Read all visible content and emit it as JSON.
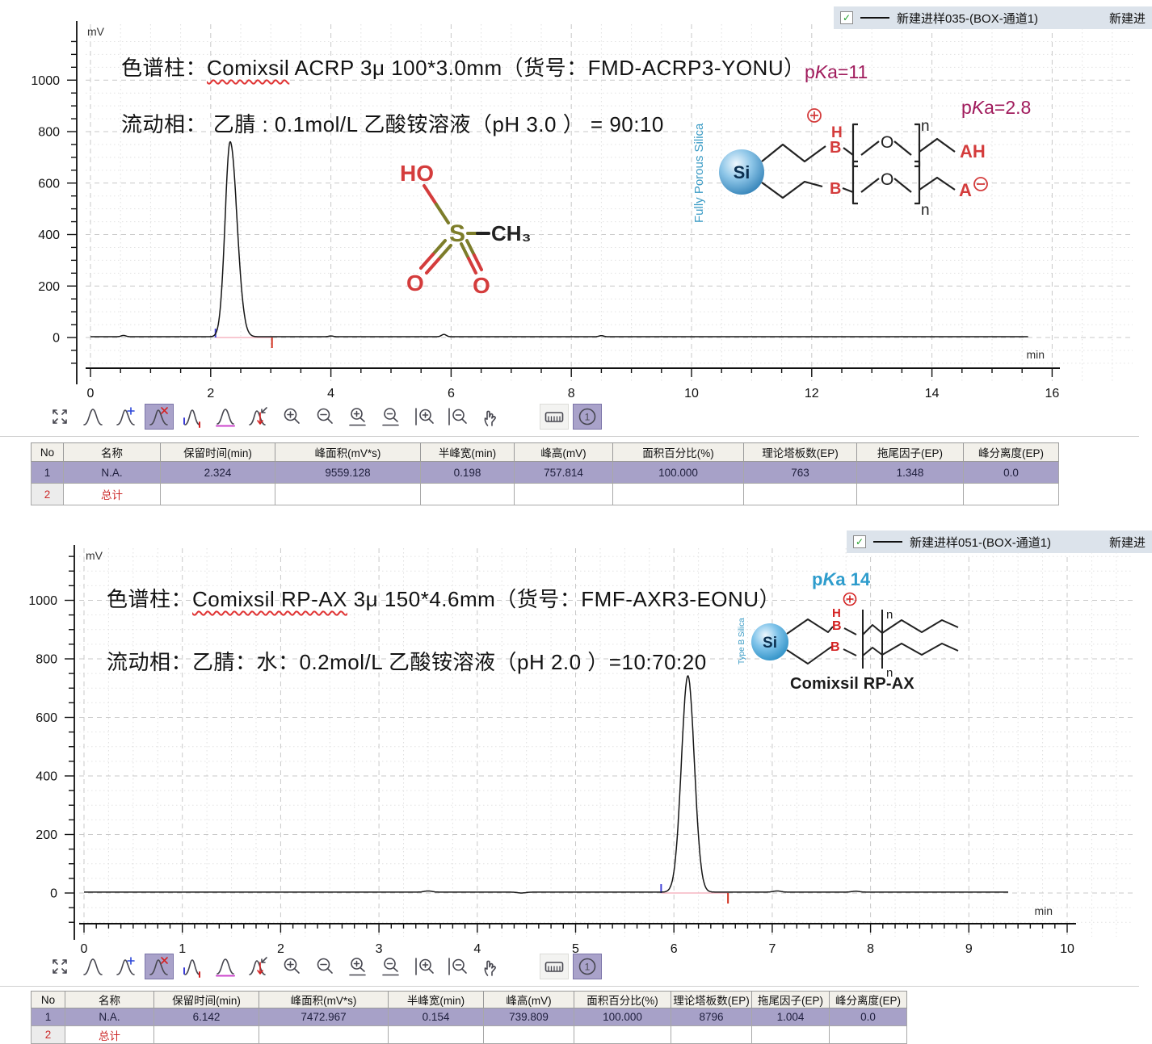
{
  "chart_data": [
    {
      "type": "line",
      "y_label": "mV",
      "x_label": "min",
      "x_range": [
        0,
        16.2
      ],
      "x_tick_major": 2,
      "x_tick_minor": 0.5,
      "y_ticks": [
        0,
        200,
        400,
        600,
        800,
        1000
      ],
      "grid": true,
      "trace_end_min": 15.6,
      "peaks": [
        {
          "name": "N.A.",
          "retention_min": 2.324,
          "height_mV": 757.814,
          "area_mVs": 9559.128,
          "half_width_min": 0.198,
          "tailing_factor": 1.348,
          "plates_EP": 763
        }
      ],
      "integration_marks": {
        "start_min": 2.08,
        "end_min": 3.02
      },
      "baseline_blips": [
        [
          0.55,
          5
        ],
        [
          4.0,
          3
        ],
        [
          5.88,
          9
        ],
        [
          8.5,
          4
        ]
      ]
    },
    {
      "type": "line",
      "y_label": "mV",
      "x_label": "min",
      "x_range": [
        0,
        10.1
      ],
      "x_tick_major": 1,
      "x_tick_minor": 0.125,
      "y_ticks": [
        0,
        200,
        400,
        600,
        800,
        1000
      ],
      "grid": true,
      "trace_end_min": 9.4,
      "peaks": [
        {
          "name": "N.A.",
          "retention_min": 6.142,
          "height_mV": 739.809,
          "area_mVs": 7472.967,
          "half_width_min": 0.154,
          "tailing_factor": 1.004,
          "plates_EP": 8796
        }
      ],
      "integration_marks": {
        "start_min": 5.87,
        "end_min": 6.55
      },
      "baseline_blips": [
        [
          3.5,
          4
        ],
        [
          4.45,
          -3
        ],
        [
          7.05,
          4
        ],
        [
          7.85,
          3
        ]
      ]
    }
  ],
  "panels": [
    {
      "legend": {
        "label": "新建进样035-(BOX-通道1)",
        "extra": "新建进"
      },
      "column_prefix": "色谱柱：",
      "column_wavy": "Comixsil",
      "column_rest": " ACRP 3μ 100*3.0mm（货号：FMD-ACRP3-YONU）",
      "mobile_phase": "流动相： 乙腈 : 0.1mol/L 乙酸铵溶液（pH 3.0 ） = 90:10",
      "molecule": {
        "name": "methanesulfonic acid",
        "ho": "HO",
        "s": "S",
        "ch3": "CH₃",
        "o1": "O",
        "o2": "O"
      },
      "silica": {
        "vertical_label": "Fully Porous Silica",
        "si": "Si",
        "h": "H",
        "b1": "B",
        "b2": "B",
        "o1": "O",
        "o2": "O",
        "n1": "n",
        "n2": "n",
        "ah": "AH",
        "a": "A",
        "pka1": {
          "pre": "p",
          "k": "K",
          "post": "a=11"
        },
        "pka2": {
          "pre": "p",
          "k": "K",
          "post": "a=2.8"
        }
      }
    },
    {
      "legend": {
        "label": "新建进样051-(BOX-通道1)",
        "extra": "新建进"
      },
      "column_prefix": "色谱柱：",
      "column_wavy": "Comixsil RP-AX",
      "column_rest": " 3μ  150*4.6mm（货号：FMF-AXR3-EONU）",
      "mobile_phase": "流动相：乙腈：水：0.2mol/L 乙酸铵溶液（pH 2.0 ）=10:70:20",
      "silica": {
        "vertical_label": "Type B Silica",
        "si": "Si",
        "h": "H",
        "b1": "B",
        "b2": "B",
        "n1": "n",
        "n2": "n",
        "pka": {
          "pre": "p",
          "k": "K",
          "post": "a 14"
        },
        "product_label": "Comixsil RP-AX"
      }
    }
  ],
  "toolbar": {
    "icons": [
      "full-scale",
      "peak",
      "add-peak",
      "delete-peak",
      "peak-start-end",
      "set-baseline",
      "manual-baseline",
      "zoom-in",
      "zoom-out",
      "zoom-in-x",
      "zoom-out-x",
      "zoom-in-y",
      "zoom-out-y",
      "pan-hand",
      "ruler",
      "channel-1"
    ],
    "active_icons": [
      "delete-peak",
      "channel-1"
    ],
    "channel_label": "1"
  },
  "table_headers": [
    "No",
    "名称",
    "保留时间(min)",
    "峰面积(mV*s)",
    "半峰宽(min)",
    "峰高(mV)",
    "面积百分比(%)",
    "理论塔板数(EP)",
    "拖尾因子(EP)",
    "峰分离度(EP)"
  ],
  "tables": [
    {
      "rows": [
        {
          "no": "1",
          "name": "N.A.",
          "rt": "2.324",
          "area": "9559.128",
          "hw": "0.198",
          "height": "757.814",
          "pct": "100.000",
          "plates": "763",
          "tailing": "1.348",
          "res": "0.0"
        },
        {
          "no": "2",
          "name": "总计",
          "rt": "",
          "area": "",
          "hw": "",
          "height": "",
          "pct": "",
          "plates": "",
          "tailing": "",
          "res": ""
        }
      ]
    },
    {
      "rows": [
        {
          "no": "1",
          "name": "N.A.",
          "rt": "6.142",
          "area": "7472.967",
          "hw": "0.154",
          "height": "739.809",
          "pct": "100.000",
          "plates": "8796",
          "tailing": "1.004",
          "res": "0.0"
        },
        {
          "no": "2",
          "name": "总计",
          "rt": "",
          "area": "",
          "hw": "",
          "height": "",
          "pct": "",
          "plates": "",
          "tailing": "",
          "res": ""
        }
      ]
    }
  ],
  "colors": {
    "row_highlight": "#a7a1c8",
    "legend_bg": "#dce3eb",
    "integration_baseline": "#f6b6c2",
    "start_tick": "#4343d6",
    "end_tick": "#d23220",
    "pka_magenta": "#a01b5c",
    "pka_blue": "#2e9ccc",
    "silica_blue": "#3a9bc5"
  }
}
